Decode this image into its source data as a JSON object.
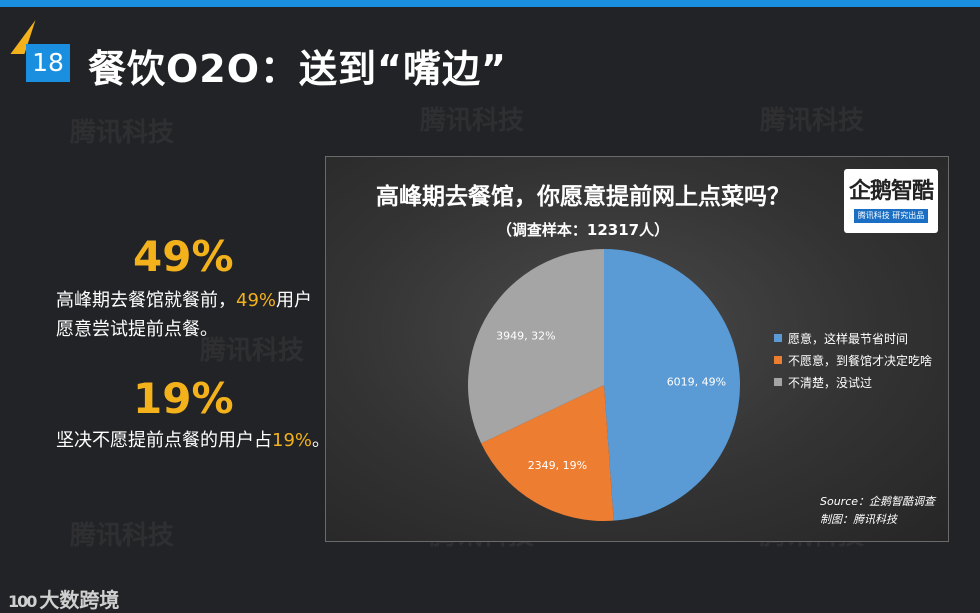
{
  "slide": {
    "page_number": "18",
    "title": "餐饮O2O：送到“嘴边”"
  },
  "watermarks": [
    "腾讯科技"
  ],
  "stats": [
    {
      "value": "49%",
      "text_before": "高峰期去餐馆就餐前，",
      "highlight": "49%",
      "text_after": "用户愿意尝试提前点餐。"
    },
    {
      "value": "19%",
      "text_before": "坚决不愿提前点餐的用户占",
      "highlight": "19%",
      "text_after": "。"
    }
  ],
  "logo": {
    "name": "企鹅智酷",
    "sub": "腾讯科技 研究出品"
  },
  "chart_data": {
    "type": "pie",
    "title": "高峰期去餐馆，你愿意提前网上点菜吗？",
    "subtitle": "（调查样本：12317人）",
    "slices": [
      {
        "label": "愿意，这样最节省时间",
        "value": 6019,
        "percent": 49,
        "data_label": "6019, 49%",
        "color": "#5b9bd5"
      },
      {
        "label": "不愿意，到餐馆才决定吃啥",
        "value": 2349,
        "percent": 19,
        "data_label": "2349, 19%",
        "color": "#ed7d31"
      },
      {
        "label": "不清楚，没试过",
        "value": 3949,
        "percent": 32,
        "data_label": "3949, 32%",
        "color": "#a5a5a5"
      }
    ],
    "legend_position": "right",
    "source": "Source：企鹅智酷调查",
    "maker": "制图：腾讯科技"
  },
  "brand": {
    "icon": "100",
    "name": "大数跨境"
  },
  "colors": {
    "accent_blue": "#1a8fe0",
    "accent_gold": "#f3b21b",
    "background": "#222326"
  }
}
